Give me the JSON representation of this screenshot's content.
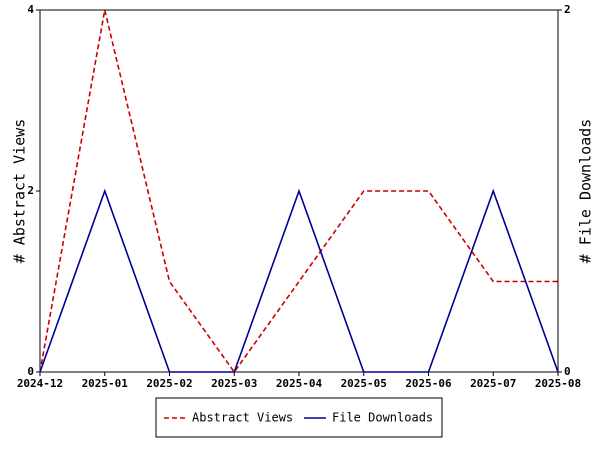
{
  "chart_data": {
    "type": "line",
    "categories": [
      "2024-12",
      "2025-01",
      "2025-02",
      "2025-03",
      "2025-04",
      "2025-05",
      "2025-06",
      "2025-07",
      "2025-08"
    ],
    "y_label": "# Abstract Views",
    "y2_label": "# File Downloads",
    "ylim": [
      0,
      4
    ],
    "yticks": [
      0,
      2,
      4
    ],
    "y2lim": [
      0,
      2
    ],
    "y2ticks": [
      0,
      2
    ],
    "grid": false,
    "legend": "bottom",
    "series": [
      {
        "name": "Abstract Views",
        "color": "#cc0000",
        "linestyle": "dashed",
        "axis": "y",
        "values": [
          0,
          4,
          1,
          0,
          1,
          2,
          2,
          1,
          1
        ]
      },
      {
        "name": "File Downloads",
        "color": "#000099",
        "linestyle": "solid",
        "axis": "y2",
        "values": [
          0,
          1,
          0,
          0,
          1,
          0,
          0,
          1,
          0
        ]
      }
    ]
  }
}
